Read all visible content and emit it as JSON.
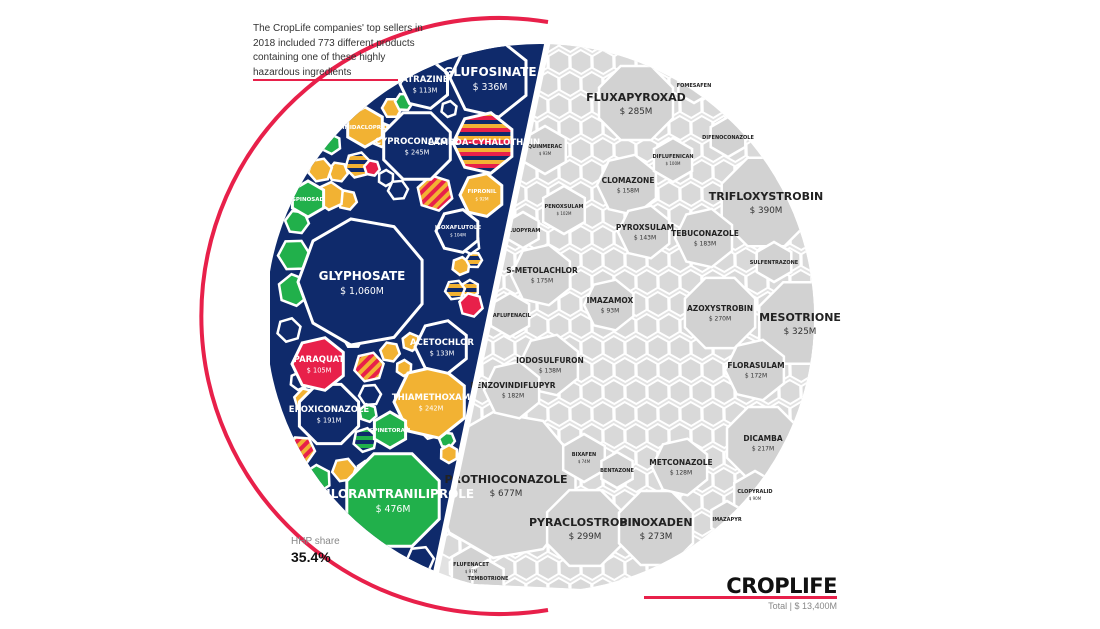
{
  "annotation": "The CropLife companies' top sellers in 2018 included 773 different products containing one of these highly hazardous ingredients",
  "hhp_share": {
    "label": "HHP share",
    "value": "35.4%"
  },
  "brand": {
    "name": "CROPLIFE",
    "total": "Total | $ 13,400M"
  },
  "colors": {
    "navy": "#0f2a6b",
    "yellow": "#f2b233",
    "green": "#21b04b",
    "red": "#e8204a",
    "grey": "#d9d9d9",
    "grey_stroke": "#ffffff",
    "accent": "#e8204a"
  },
  "chart_data": {
    "type": "voronoi-treemap",
    "total_value_musd": 13400,
    "hhp_share_percent": 35.4,
    "hhp_products_count": 773,
    "hhp_items": [
      {
        "name": "GLYPHOSATE",
        "value_label": "$ 1,060M",
        "value": 1060,
        "color": "navy"
      },
      {
        "name": "CHLORANTRANILIPROLE",
        "value_label": "$ 476M",
        "value": 476,
        "color": "green"
      },
      {
        "name": "GLUFOSINATE",
        "value_label": "$ 336M",
        "value": 336,
        "color": "navy"
      },
      {
        "name": "CYPROCONAZOLE",
        "value_label": "$ 245M",
        "value": 245,
        "color": "navy"
      },
      {
        "name": "THIAMETHOXAM",
        "value_label": "$ 242M",
        "value": 242,
        "color": "yellow"
      },
      {
        "name": "EPOXICONAZOLE",
        "value_label": "$ 191M",
        "value": 191,
        "color": "navy"
      },
      {
        "name": "ACETOCHLOR",
        "value_label": "$ 133M",
        "value": 133,
        "color": "navy"
      },
      {
        "name": "ATRAZINE",
        "value_label": "$ 113M",
        "value": 113,
        "color": "navy"
      },
      {
        "name": "PARAQUAT",
        "value_label": "$ 105M",
        "value": 105,
        "color": "red"
      },
      {
        "name": "ISOXAFLUTOLE",
        "value_label": "$ 104M",
        "value": 104,
        "color": "navy"
      },
      {
        "name": "FIPRONIL",
        "value_label": "$ 92M",
        "value": 92,
        "color": "yellow"
      },
      {
        "name": "LAMBDA-CYHALOTHRIN",
        "value_label": "",
        "color": "striped"
      },
      {
        "name": "IMIDACLOPRID",
        "value_label": "",
        "color": "yellow"
      },
      {
        "name": "SPINOSAD",
        "value_label": "",
        "color": "green"
      },
      {
        "name": "SPINETORAM",
        "value_label": "",
        "color": "green"
      }
    ],
    "other_items": [
      {
        "name": "FLUXAPYROXAD",
        "value_label": "$ 285M",
        "value": 285
      },
      {
        "name": "PROTHIOCONAZOLE",
        "value_label": "$ 677M",
        "value": 677
      },
      {
        "name": "TRIFLOXYSTROBIN",
        "value_label": "$ 390M",
        "value": 390
      },
      {
        "name": "MESOTRIONE",
        "value_label": "$ 325M",
        "value": 325
      },
      {
        "name": "PYRACLOSTROBIN",
        "value_label": "$ 299M",
        "value": 299
      },
      {
        "name": "PINOXADEN",
        "value_label": "$ 273M",
        "value": 273
      },
      {
        "name": "AZOXYSTROBIN",
        "value_label": "$ 270M",
        "value": 270
      },
      {
        "name": "DICAMBA",
        "value_label": "$ 217M",
        "value": 217
      },
      {
        "name": "TEBUCONAZOLE",
        "value_label": "$ 183M",
        "value": 183
      },
      {
        "name": "S-METOLACHLOR",
        "value_label": "$ 175M",
        "value": 175
      },
      {
        "name": "FLORASULAM",
        "value_label": "$ 172M",
        "value": 172
      },
      {
        "name": "CLOMAZONE",
        "value_label": "$ 158M",
        "value": 158
      },
      {
        "name": "PYROXSULAM",
        "value_label": "$ 143M",
        "value": 143
      },
      {
        "name": "IODOSULFURON",
        "value_label": "$ 138M",
        "value": 138
      },
      {
        "name": "METCONAZOLE",
        "value_label": "$ 128M",
        "value": 128
      },
      {
        "name": "BENZOVINDIFLUPYR",
        "value_label": "$ 182M",
        "value": 182
      },
      {
        "name": "PENOXSULAM",
        "value_label": "$ 102M",
        "value": 102
      },
      {
        "name": "DIFLUFENICAN",
        "value_label": "$ 100M",
        "value": 100
      },
      {
        "name": "FLUFENACET",
        "value_label": "$ 97M",
        "value": 97
      },
      {
        "name": "IMAZAMOX",
        "value_label": "$ 93M",
        "value": 93
      },
      {
        "name": "QUINMERAC",
        "value_label": "$ 93M",
        "value": 93
      },
      {
        "name": "CLOPYRALID",
        "value_label": "$ 90M",
        "value": 90
      },
      {
        "name": "BIXAFEN",
        "value_label": "$ 74M",
        "value": 74
      },
      {
        "name": "FOMESAFEN",
        "value_label": ""
      },
      {
        "name": "DIFENOCONAZOLE",
        "value_label": ""
      },
      {
        "name": "SULFENTRAZONE",
        "value_label": ""
      },
      {
        "name": "SAFLUFENACIL",
        "value_label": ""
      },
      {
        "name": "FLUOPYRAM",
        "value_label": ""
      },
      {
        "name": "BENTAZONE",
        "value_label": ""
      },
      {
        "name": "IMAZAPYR",
        "value_label": ""
      },
      {
        "name": "TEMBOTRIONE",
        "value_label": ""
      }
    ]
  }
}
